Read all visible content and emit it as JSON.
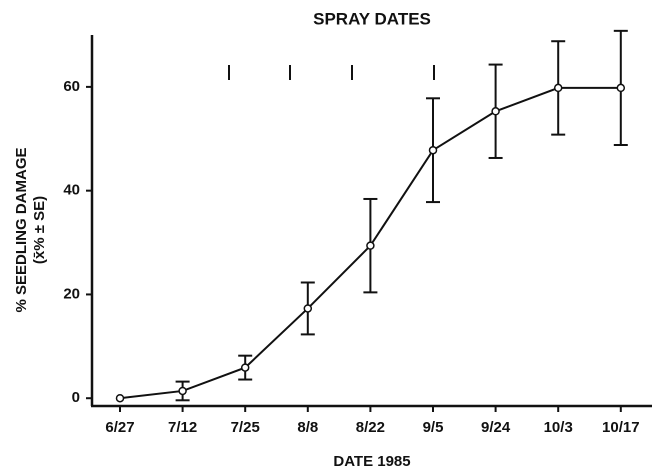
{
  "chart_data": {
    "type": "line",
    "title": "SPRAY DATES",
    "x_label": "DATE 1985",
    "y_label": "% SEEDLING DAMAGE",
    "y_label_sub": "(x̄% ± SE)",
    "categories": [
      "6/27",
      "7/12",
      "7/25",
      "8/8",
      "8/22",
      "9/5",
      "9/24",
      "10/3",
      "10/17"
    ],
    "series": [
      {
        "color": "#111111",
        "values": [
          0,
          1.4,
          5.9,
          17.3,
          29.4,
          47.8,
          55.3,
          59.8,
          59.8
        ],
        "errors": [
          0,
          1.8,
          2.3,
          5,
          9,
          10,
          9,
          9,
          11
        ]
      }
    ],
    "ylim": [
      -1.5,
      70
    ],
    "yticks": [
      0,
      20,
      40,
      60
    ]
  }
}
